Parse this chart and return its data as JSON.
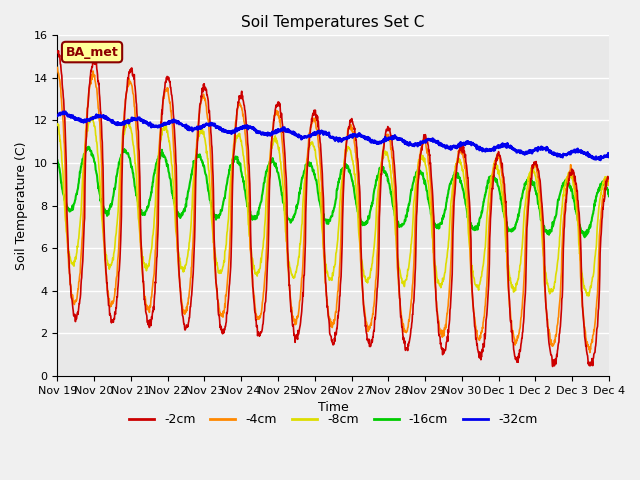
{
  "title": "Soil Temperatures Set C",
  "xlabel": "Time",
  "ylabel": "Soil Temperature (C)",
  "ylim": [
    0,
    16
  ],
  "yticks": [
    0,
    2,
    4,
    6,
    8,
    10,
    12,
    14,
    16
  ],
  "legend_label": "BA_met",
  "series_labels": [
    "-2cm",
    "-4cm",
    "-8cm",
    "-16cm",
    "-32cm"
  ],
  "series_colors": [
    "#cc0000",
    "#ff8800",
    "#dddd00",
    "#00cc00",
    "#0000ee"
  ],
  "series_linewidths": [
    1.2,
    1.2,
    1.2,
    1.5,
    1.8
  ],
  "plot_bg_color": "#e8e8e8",
  "fig_bg_color": "#f0f0f0",
  "n_points": 1500,
  "xtick_labels": [
    "Nov 19",
    "Nov 20",
    "Nov 21",
    "Nov 22",
    "Nov 23",
    "Nov 24",
    "Nov 25",
    "Nov 26",
    "Nov 27",
    "Nov 28",
    "Nov 29",
    "Nov 30",
    "Dec 1",
    "Dec 2",
    "Dec 3",
    "Dec 4"
  ],
  "xtick_positions": [
    0,
    1,
    2,
    3,
    4,
    5,
    6,
    7,
    8,
    9,
    10,
    11,
    12,
    13,
    14,
    15
  ],
  "title_fontsize": 11,
  "axis_fontsize": 9,
  "tick_fontsize": 8,
  "legend_fontsize": 9
}
